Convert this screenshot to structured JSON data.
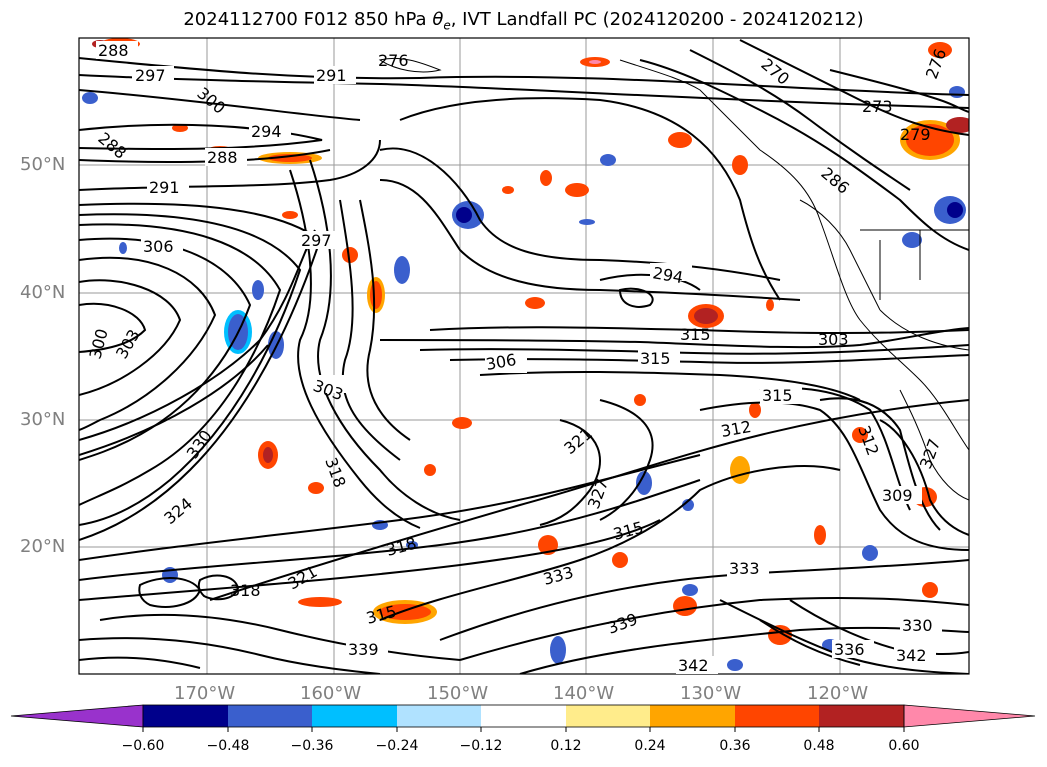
{
  "title": {
    "prefix": "2024112700 F012 850 hPa ",
    "theta": "θ",
    "theta_sub": "e",
    "suffix": ", IVT Landfall PC (2024120200 - 2024120212)"
  },
  "latitude_labels": [
    "50°N",
    "40°N",
    "30°N",
    "20°N"
  ],
  "longitude_labels": [
    "170°W",
    "160°W",
    "150°W",
    "140°W",
    "130°W",
    "120°W"
  ],
  "colorbar": {
    "ticks": [
      "−0.60",
      "−0.48",
      "−0.36",
      "−0.24",
      "−0.12",
      "0.12",
      "0.24",
      "0.36",
      "0.48",
      "0.60"
    ],
    "colors": {
      "under": "#9932cc",
      "bins": [
        "#9932cc",
        "#00008b",
        "#3a5fcd",
        "#00bfff",
        "#b0e2ff",
        "#ffffff",
        "#ffec8b",
        "#ffa500",
        "#ff4500",
        "#b22222",
        "#ff88aa"
      ],
      "over": "#ff88aa"
    }
  },
  "contour_labels": [
    "288",
    "297",
    "291",
    "276",
    "270",
    "300",
    "294",
    "273",
    "279",
    "288",
    "288",
    "291",
    "286",
    "297",
    "306",
    "294",
    "300",
    "303",
    "306",
    "315",
    "303",
    "303",
    "315",
    "312",
    "312",
    "327",
    "327",
    "330",
    "324",
    "321",
    "318",
    "315",
    "333",
    "339",
    "342",
    "333",
    "330",
    "339",
    "336",
    "342",
    "321",
    "318",
    "315",
    "309",
    "315",
    "318",
    "276"
  ],
  "contour_style": {
    "line_color": "#000000"
  }
}
